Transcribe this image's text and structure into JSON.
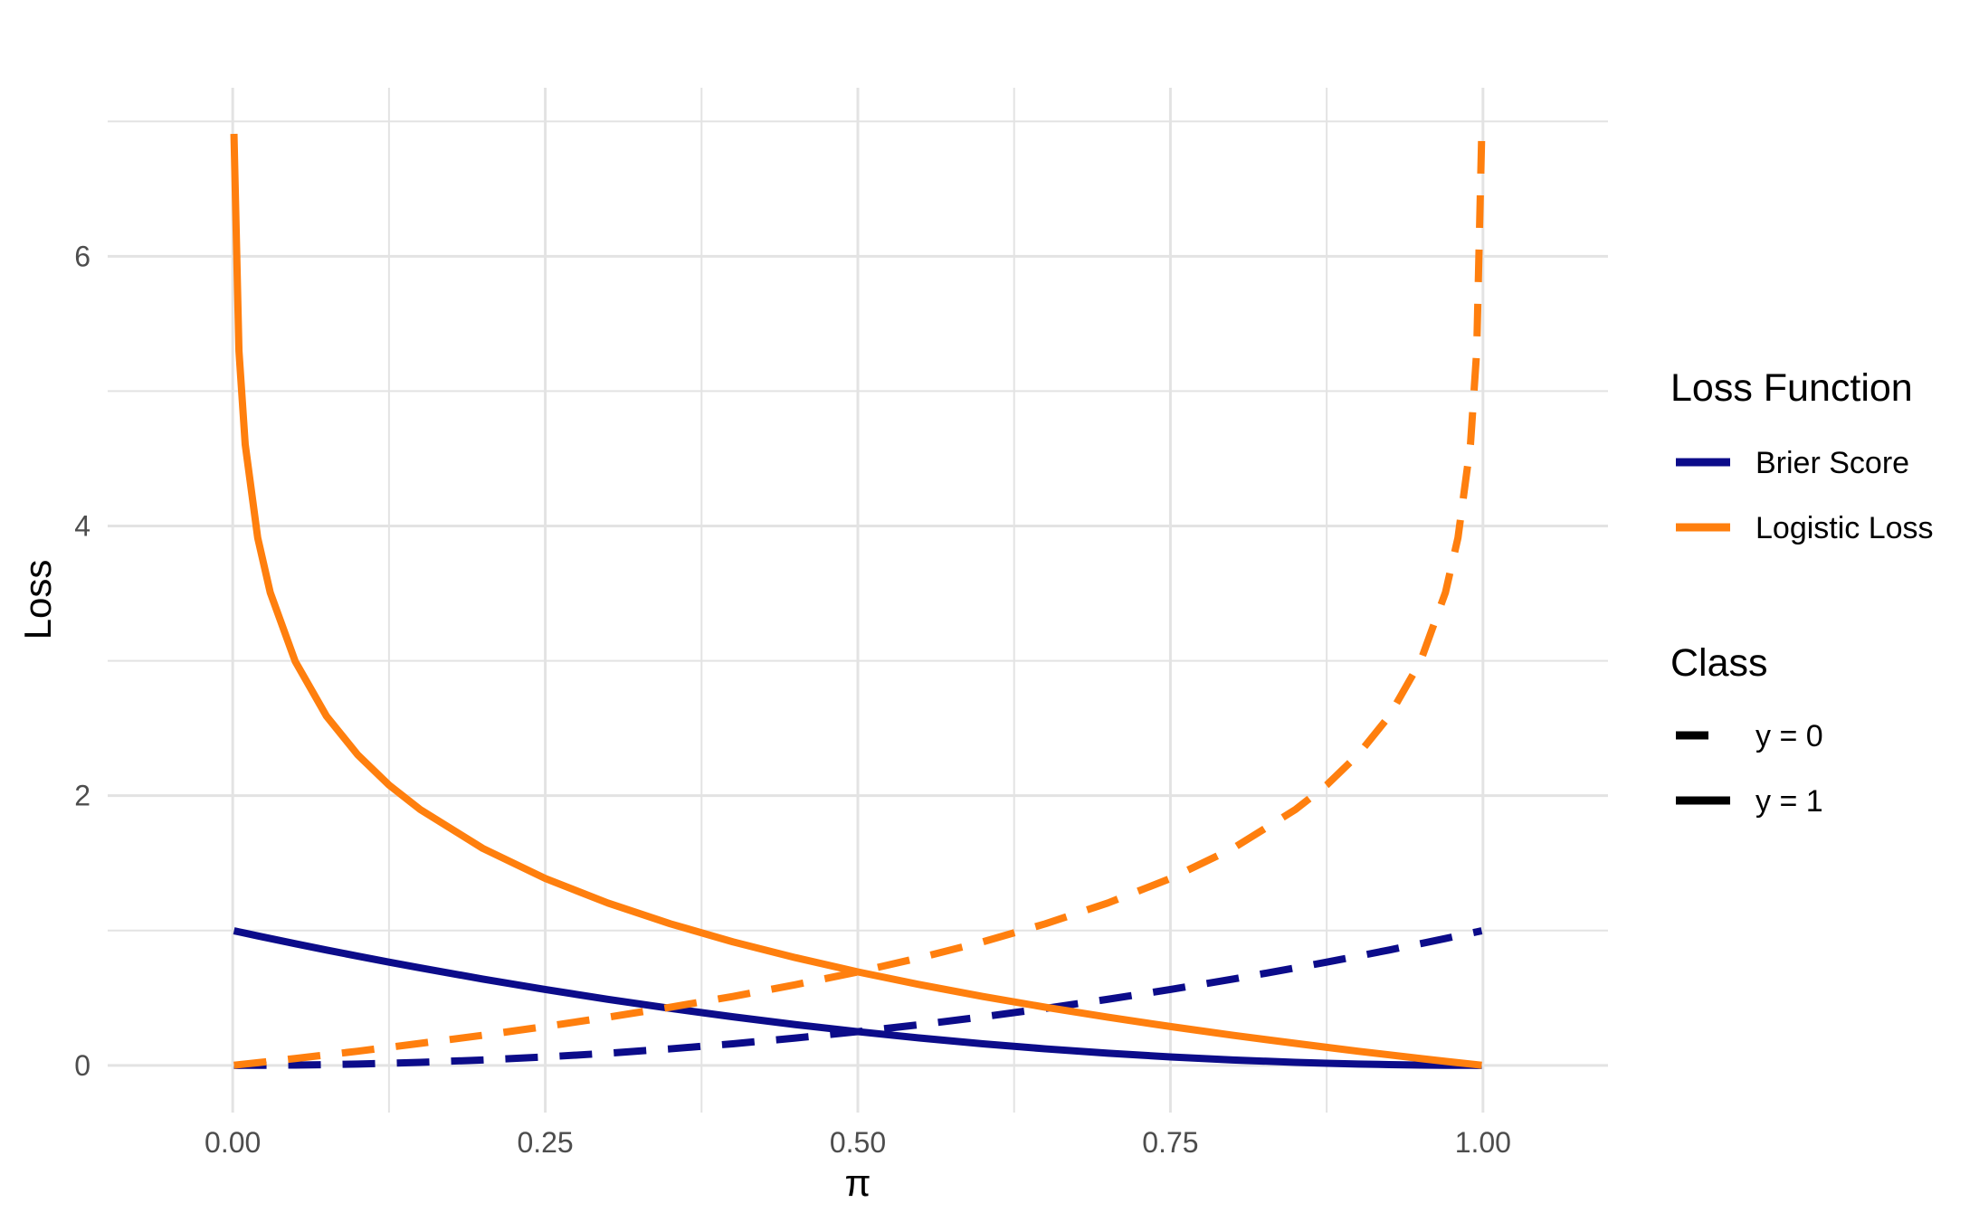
{
  "chart_data": {
    "type": "line",
    "title": "",
    "xlabel": "π",
    "ylabel": "Loss",
    "xlim": [
      -0.1,
      1.1
    ],
    "ylim": [
      -0.35,
      7.25
    ],
    "x_ticks": [
      0,
      0.25,
      0.5,
      0.75,
      1
    ],
    "x_tick_labels": [
      "0.00",
      "0.25",
      "0.50",
      "0.75",
      "1.00"
    ],
    "y_ticks": [
      0,
      2,
      4,
      6
    ],
    "y_tick_labels": [
      "0",
      "2",
      "4",
      "6"
    ],
    "grid": true,
    "legend_position": "right",
    "colors": {
      "brier": "#0c0c8a",
      "logistic": "#ff7f0e",
      "grid": "#e3e3e3"
    },
    "legends": [
      {
        "title": "Loss Function",
        "entries": [
          {
            "label": "Brier Score",
            "color": "#0c0c8a",
            "linestyle": "solid"
          },
          {
            "label": "Logistic Loss",
            "color": "#ff7f0e",
            "linestyle": "solid"
          }
        ]
      },
      {
        "title": "Class",
        "entries": [
          {
            "label": "y = 0",
            "color": "#000000",
            "linestyle": "dashed"
          },
          {
            "label": "y = 1",
            "color": "#000000",
            "linestyle": "solid"
          }
        ]
      }
    ],
    "x": [
      0.001,
      0.005,
      0.01,
      0.02,
      0.03,
      0.05,
      0.075,
      0.1,
      0.125,
      0.15,
      0.2,
      0.25,
      0.3,
      0.35,
      0.4,
      0.45,
      0.5,
      0.55,
      0.6,
      0.65,
      0.7,
      0.75,
      0.8,
      0.85,
      0.875,
      0.9,
      0.925,
      0.95,
      0.97,
      0.98,
      0.99,
      0.995,
      0.999
    ],
    "series": [
      {
        "name": "Brier Score, y = 0",
        "function": "Brier Score",
        "class": "y = 0",
        "color": "#0c0c8a",
        "linestyle": "dashed",
        "values": [
          1e-06,
          2.5e-05,
          0.0001,
          0.0004,
          0.0009,
          0.0025,
          0.005625,
          0.01,
          0.015625,
          0.0225,
          0.04,
          0.0625,
          0.09,
          0.1225,
          0.16,
          0.2025,
          0.25,
          0.3025,
          0.36,
          0.4225,
          0.49,
          0.5625,
          0.64,
          0.7225,
          0.765625,
          0.81,
          0.855625,
          0.9025,
          0.9409,
          0.9604,
          0.9801,
          0.990025,
          0.998001
        ]
      },
      {
        "name": "Brier Score, y = 1",
        "function": "Brier Score",
        "class": "y = 1",
        "color": "#0c0c8a",
        "linestyle": "solid",
        "values": [
          0.998001,
          0.990025,
          0.9801,
          0.9604,
          0.9409,
          0.9025,
          0.855625,
          0.81,
          0.765625,
          0.7225,
          0.64,
          0.5625,
          0.49,
          0.4225,
          0.36,
          0.3025,
          0.25,
          0.2025,
          0.16,
          0.1225,
          0.09,
          0.0625,
          0.04,
          0.0225,
          0.015625,
          0.01,
          0.005625,
          0.0025,
          0.0009,
          0.0004,
          0.0001,
          2.5e-05,
          1e-06
        ]
      },
      {
        "name": "Logistic Loss, y = 0",
        "function": "Logistic Loss",
        "class": "y = 0",
        "color": "#ff7f0e",
        "linestyle": "dashed",
        "values": [
          0.001,
          0.005,
          0.01,
          0.02,
          0.03,
          0.051,
          0.078,
          0.105,
          0.134,
          0.163,
          0.223,
          0.288,
          0.357,
          0.431,
          0.511,
          0.598,
          0.693,
          0.799,
          0.916,
          1.05,
          1.204,
          1.386,
          1.609,
          1.897,
          2.079,
          2.303,
          2.59,
          2.996,
          3.507,
          3.912,
          4.605,
          5.298,
          6.908
        ]
      },
      {
        "name": "Logistic Loss, y = 1",
        "function": "Logistic Loss",
        "class": "y = 1",
        "color": "#ff7f0e",
        "linestyle": "solid",
        "values": [
          6.908,
          5.298,
          4.605,
          3.912,
          3.507,
          2.996,
          2.59,
          2.303,
          2.079,
          1.897,
          1.609,
          1.386,
          1.204,
          1.05,
          0.916,
          0.799,
          0.693,
          0.598,
          0.511,
          0.431,
          0.357,
          0.288,
          0.223,
          0.163,
          0.134,
          0.105,
          0.078,
          0.051,
          0.03,
          0.02,
          0.01,
          0.005,
          0.001
        ]
      }
    ]
  }
}
